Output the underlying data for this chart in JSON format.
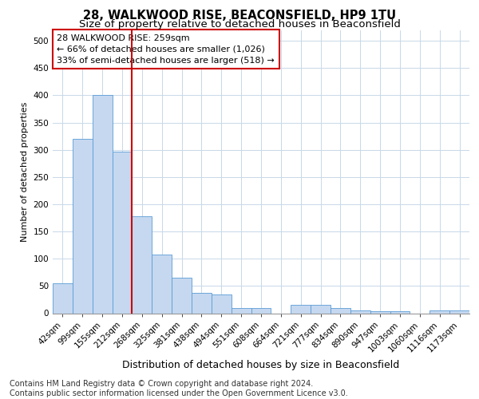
{
  "title": "28, WALKWOOD RISE, BEACONSFIELD, HP9 1TU",
  "subtitle": "Size of property relative to detached houses in Beaconsfield",
  "xlabel": "Distribution of detached houses by size in Beaconsfield",
  "ylabel": "Number of detached properties",
  "categories": [
    "42sqm",
    "99sqm",
    "155sqm",
    "212sqm",
    "268sqm",
    "325sqm",
    "381sqm",
    "438sqm",
    "494sqm",
    "551sqm",
    "608sqm",
    "664sqm",
    "721sqm",
    "777sqm",
    "834sqm",
    "890sqm",
    "947sqm",
    "1003sqm",
    "1060sqm",
    "1116sqm",
    "1173sqm"
  ],
  "values": [
    55,
    320,
    400,
    297,
    178,
    108,
    65,
    38,
    35,
    10,
    10,
    0,
    15,
    15,
    9,
    5,
    3,
    3,
    0,
    5,
    5
  ],
  "bar_color": "#c5d8f0",
  "bar_edge_color": "#5b9bd5",
  "marker_label": "28 WALKWOOD RISE: 259sqm",
  "marker_line_color": "#cc0000",
  "annotation_line1": "← 66% of detached houses are smaller (1,026)",
  "annotation_line2": "33% of semi-detached houses are larger (518) →",
  "annotation_box_color": "#cc0000",
  "ylim": [
    0,
    520
  ],
  "yticks": [
    0,
    50,
    100,
    150,
    200,
    250,
    300,
    350,
    400,
    450,
    500
  ],
  "footer_line1": "Contains HM Land Registry data © Crown copyright and database right 2024.",
  "footer_line2": "Contains public sector information licensed under the Open Government Licence v3.0.",
  "background_color": "#ffffff",
  "grid_color": "#c8d8e8",
  "title_fontsize": 10.5,
  "subtitle_fontsize": 9.5,
  "xlabel_fontsize": 9,
  "ylabel_fontsize": 8,
  "tick_fontsize": 7.5,
  "annotation_fontsize": 8,
  "footer_fontsize": 7
}
